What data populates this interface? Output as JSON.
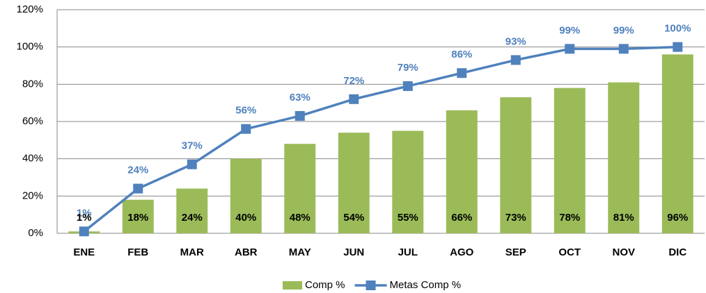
{
  "chart_data": {
    "type": "bar",
    "categories": [
      "ENE",
      "FEB",
      "MAR",
      "ABR",
      "MAY",
      "JUN",
      "JUL",
      "AGO",
      "SEP",
      "OCT",
      "NOV",
      "DIC"
    ],
    "series": [
      {
        "name": "Comp %",
        "type": "bar",
        "color": "#9bbb59",
        "values": [
          1,
          18,
          24,
          40,
          48,
          54,
          55,
          66,
          73,
          78,
          81,
          96
        ],
        "value_labels": [
          "1%",
          "18%",
          "24%",
          "40%",
          "48%",
          "54%",
          "55%",
          "66%",
          "73%",
          "78%",
          "81%",
          "96%"
        ]
      },
      {
        "name": "Metas Comp %",
        "type": "line",
        "color": "#4f81bd",
        "values": [
          1,
          24,
          37,
          56,
          63,
          72,
          79,
          86,
          93,
          99,
          99,
          100
        ],
        "value_labels": [
          "1%",
          "24%",
          "37%",
          "56%",
          "63%",
          "72%",
          "79%",
          "86%",
          "93%",
          "99%",
          "99%",
          "100%"
        ]
      }
    ],
    "ylim": [
      0,
      120
    ],
    "yticks": [
      {
        "value": 0,
        "label": "0%"
      },
      {
        "value": 20,
        "label": "20%"
      },
      {
        "value": 40,
        "label": "40%"
      },
      {
        "value": 60,
        "label": "60%"
      },
      {
        "value": 80,
        "label": "80%"
      },
      {
        "value": 100,
        "label": "100%"
      },
      {
        "value": 120,
        "label": "120%"
      }
    ],
    "grid": true,
    "legend": "bottom"
  }
}
